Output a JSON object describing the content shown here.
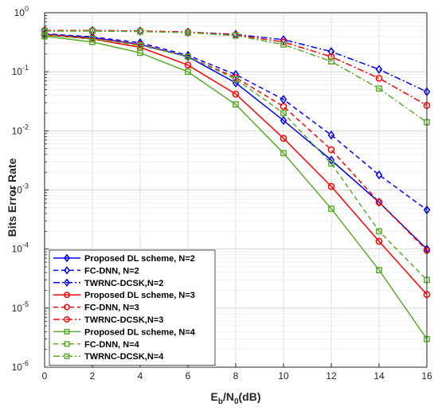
{
  "chart_data": {
    "type": "line",
    "title": "",
    "xlabel": {
      "main": "E",
      "sub1": "b",
      "mid": "/N",
      "sub2": "0",
      "tail": "(dB)"
    },
    "ylabel": "Bits Error Rate",
    "y_scale": "log",
    "xlim": [
      0,
      16
    ],
    "ylim": [
      1e-06,
      1
    ],
    "grid": true,
    "legend_position": "bottom-left",
    "x": [
      0,
      2,
      4,
      6,
      8,
      10,
      12,
      14,
      16
    ],
    "x_ticks": [
      "0",
      "2",
      "4",
      "6",
      "8",
      "10",
      "12",
      "14",
      "16"
    ],
    "y_ticks": [
      {
        "value": 1,
        "base": "10",
        "exp": "0"
      },
      {
        "value": 0.1,
        "base": "10",
        "exp": "-1"
      },
      {
        "value": 0.01,
        "base": "10",
        "exp": "-2"
      },
      {
        "value": 0.001,
        "base": "10",
        "exp": "-3"
      },
      {
        "value": 0.0001,
        "base": "10",
        "exp": "-4"
      },
      {
        "value": 1e-05,
        "base": "10",
        "exp": "-5"
      },
      {
        "value": 1e-06,
        "base": "10",
        "exp": "-6"
      }
    ],
    "series": [
      {
        "name": "Proposed DL scheme, N=2",
        "color": "#0000ff",
        "dash": "solid",
        "marker": "diamond",
        "values": [
          0.43,
          0.38,
          0.29,
          0.18,
          0.065,
          0.015,
          0.0032,
          0.00062,
          0.0001
        ]
      },
      {
        "name": "FC-DNN, N=2",
        "color": "#0000ff",
        "dash": "dashed",
        "marker": "diamond",
        "values": [
          0.44,
          0.39,
          0.31,
          0.19,
          0.09,
          0.034,
          0.0085,
          0.0018,
          0.00046
        ]
      },
      {
        "name": "TWRNC-DCSK,N=2",
        "color": "#0000ff",
        "dash": "dashdot",
        "marker": "diamond",
        "values": [
          0.5,
          0.5,
          0.49,
          0.47,
          0.43,
          0.35,
          0.22,
          0.11,
          0.046
        ]
      },
      {
        "name": "Proposed DL scheme, N=3",
        "color": "#ff0000",
        "dash": "solid",
        "marker": "circle",
        "values": [
          0.42,
          0.36,
          0.26,
          0.13,
          0.042,
          0.0075,
          0.00115,
          0.000135,
          1.7e-05
        ]
      },
      {
        "name": "FC-DNN, N=3",
        "color": "#ff0000",
        "dash": "dashed",
        "marker": "circle",
        "values": [
          0.43,
          0.37,
          0.29,
          0.18,
          0.08,
          0.026,
          0.0048,
          0.00062,
          9.5e-05
        ]
      },
      {
        "name": "TWRNC-DCSK,N=3",
        "color": "#ff0000",
        "dash": "dashdot",
        "marker": "circle",
        "values": [
          0.5,
          0.5,
          0.49,
          0.47,
          0.42,
          0.32,
          0.18,
          0.078,
          0.027
        ]
      },
      {
        "name": "Proposed DL scheme, N=4",
        "color": "#5aad2a",
        "dash": "solid",
        "marker": "square",
        "values": [
          0.4,
          0.32,
          0.21,
          0.1,
          0.028,
          0.0042,
          0.00048,
          4.4e-05,
          3e-06
        ]
      },
      {
        "name": "FC-DNN, N=4",
        "color": "#5aad2a",
        "dash": "dashed",
        "marker": "square",
        "values": [
          0.42,
          0.36,
          0.28,
          0.18,
          0.075,
          0.02,
          0.0028,
          0.0002,
          3e-05
        ]
      },
      {
        "name": "TWRNC-DCSK,N=4",
        "color": "#5aad2a",
        "dash": "dashdot",
        "marker": "square",
        "values": [
          0.49,
          0.49,
          0.48,
          0.46,
          0.41,
          0.29,
          0.15,
          0.052,
          0.014
        ]
      }
    ]
  }
}
